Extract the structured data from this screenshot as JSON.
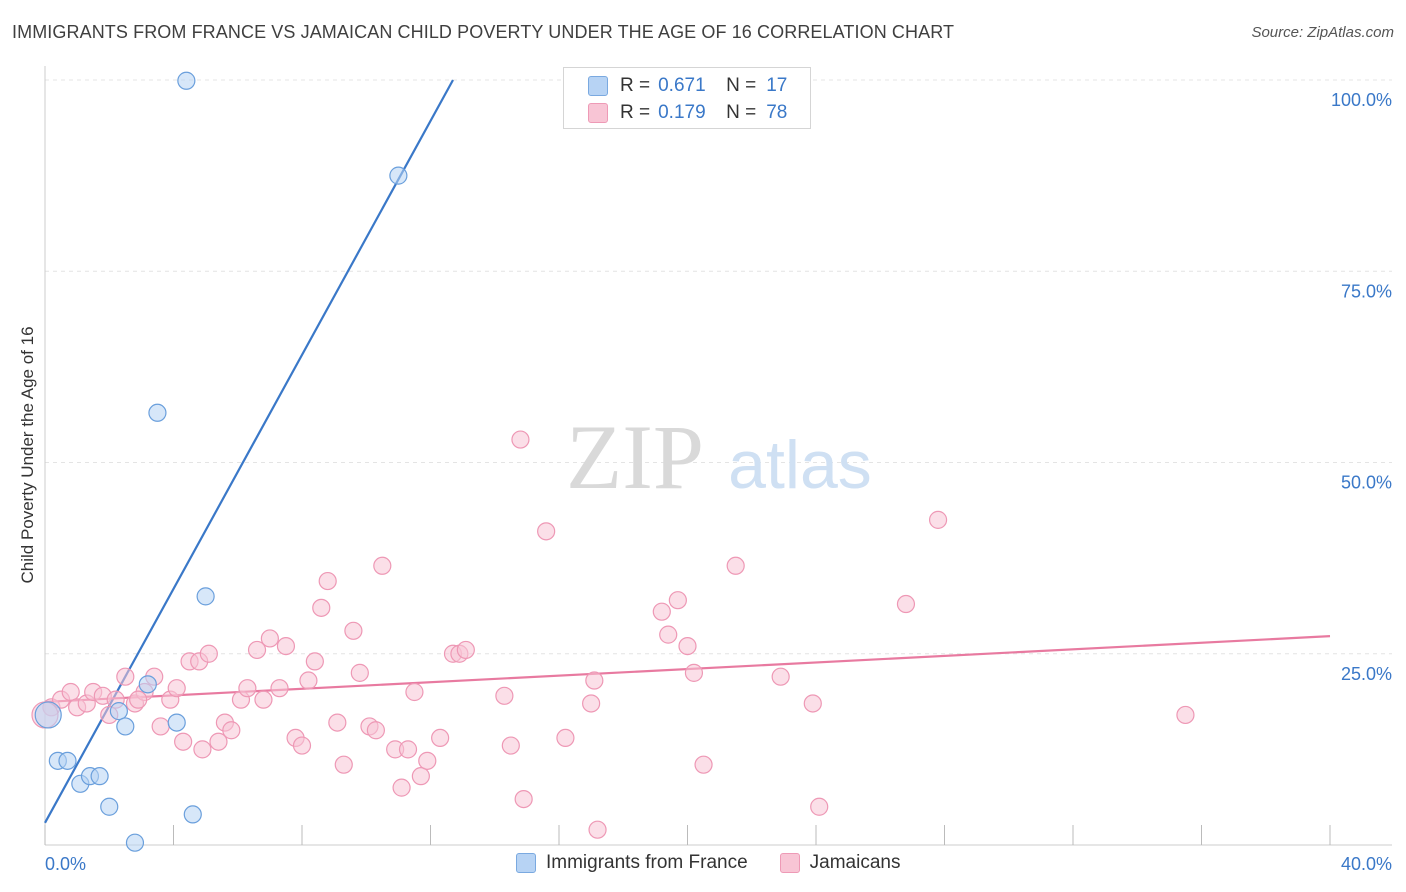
{
  "title": "IMMIGRANTS FROM FRANCE VS JAMAICAN CHILD POVERTY UNDER THE AGE OF 16 CORRELATION CHART",
  "source": "Source: ZipAtlas.com",
  "watermark": {
    "zip": "ZIP",
    "atlas": "atlas"
  },
  "colors": {
    "blue": "#3a78c8",
    "pink": "#e87aa0",
    "blue_fill": "#b7d3f4",
    "pink_fill": "#f8c5d5"
  },
  "stats": [
    {
      "r_label": "R =",
      "r_value": "0.671",
      "n_label": "N =",
      "n_value": "17",
      "series": "france"
    },
    {
      "r_label": "R =",
      "r_value": "0.179",
      "n_label": "N =",
      "n_value": "78",
      "series": "jamaicans"
    }
  ],
  "chart_data": {
    "type": "scatter",
    "title": "IMMIGRANTS FROM FRANCE VS JAMAICAN CHILD POVERTY UNDER THE AGE OF 16 CORRELATION CHART",
    "xlabel": "",
    "ylabel": "Child Poverty Under the Age of 16",
    "xlim": [
      0,
      40
    ],
    "ylim": [
      0,
      100
    ],
    "x_tick_labels": [
      "0.0%",
      "40.0%"
    ],
    "y_tick_labels": [
      "25.0%",
      "50.0%",
      "75.0%",
      "100.0%"
    ],
    "y_tick_values": [
      25,
      50,
      75,
      100
    ],
    "grid": true,
    "legend": [
      "Immigrants from France",
      "Jamaicans"
    ],
    "series": [
      {
        "name": "Immigrants from France",
        "color": "#3a78c8",
        "trend": {
          "x1": 0,
          "y1": 2.9,
          "x2": 12.7,
          "y2": 100
        },
        "points": [
          [
            0.1,
            17.0
          ],
          [
            0.4,
            11.0
          ],
          [
            0.7,
            11.0
          ],
          [
            1.1,
            8.0
          ],
          [
            1.4,
            9.0
          ],
          [
            1.7,
            9.0
          ],
          [
            2.0,
            5.0
          ],
          [
            2.3,
            17.5
          ],
          [
            2.5,
            15.5
          ],
          [
            2.8,
            0.3
          ],
          [
            3.2,
            21.0
          ],
          [
            3.5,
            56.5
          ],
          [
            4.1,
            16.0
          ],
          [
            4.4,
            99.9
          ],
          [
            4.6,
            4.0
          ],
          [
            5.0,
            32.5
          ],
          [
            11.0,
            87.5
          ]
        ]
      },
      {
        "name": "Jamaicans",
        "color": "#e87aa0",
        "trend": {
          "x1": 0,
          "y1": 18.7,
          "x2": 40,
          "y2": 27.3
        },
        "points": [
          [
            0.2,
            18.0
          ],
          [
            0.5,
            19.0
          ],
          [
            0.8,
            20.0
          ],
          [
            1.0,
            18.0
          ],
          [
            1.3,
            18.5
          ],
          [
            1.5,
            20.0
          ],
          [
            1.8,
            19.5
          ],
          [
            2.0,
            17.0
          ],
          [
            2.2,
            19.0
          ],
          [
            2.5,
            22.0
          ],
          [
            2.8,
            18.5
          ],
          [
            3.1,
            20.0
          ],
          [
            3.4,
            22.0
          ],
          [
            3.6,
            15.5
          ],
          [
            3.9,
            19.0
          ],
          [
            4.1,
            20.5
          ],
          [
            4.3,
            13.5
          ],
          [
            4.5,
            24.0
          ],
          [
            4.8,
            24.0
          ],
          [
            4.9,
            12.5
          ],
          [
            5.1,
            25.0
          ],
          [
            5.4,
            13.5
          ],
          [
            5.6,
            16.0
          ],
          [
            5.8,
            15.0
          ],
          [
            6.1,
            19.0
          ],
          [
            6.3,
            20.5
          ],
          [
            6.6,
            25.5
          ],
          [
            6.8,
            19.0
          ],
          [
            7.0,
            27.0
          ],
          [
            7.3,
            20.5
          ],
          [
            7.5,
            26.0
          ],
          [
            7.8,
            14.0
          ],
          [
            8.0,
            13.0
          ],
          [
            8.2,
            21.5
          ],
          [
            8.4,
            24.0
          ],
          [
            8.6,
            31.0
          ],
          [
            8.8,
            34.5
          ],
          [
            9.1,
            16.0
          ],
          [
            9.3,
            10.5
          ],
          [
            9.6,
            28.0
          ],
          [
            9.8,
            22.5
          ],
          [
            10.1,
            15.5
          ],
          [
            10.3,
            15.0
          ],
          [
            10.5,
            36.5
          ],
          [
            10.9,
            12.5
          ],
          [
            11.1,
            7.5
          ],
          [
            11.3,
            12.5
          ],
          [
            11.5,
            20.0
          ],
          [
            11.7,
            9.0
          ],
          [
            11.9,
            11.0
          ],
          [
            12.3,
            14.0
          ],
          [
            12.7,
            25.0
          ],
          [
            12.9,
            25.0
          ],
          [
            13.1,
            25.5
          ],
          [
            14.3,
            19.5
          ],
          [
            14.5,
            13.0
          ],
          [
            14.8,
            53.0
          ],
          [
            14.9,
            6.0
          ],
          [
            15.6,
            41.0
          ],
          [
            16.2,
            14.0
          ],
          [
            17.2,
            2.0
          ],
          [
            17.0,
            18.5
          ],
          [
            17.1,
            21.5
          ],
          [
            19.2,
            30.5
          ],
          [
            19.4,
            27.5
          ],
          [
            19.7,
            32.0
          ],
          [
            20.0,
            26.0
          ],
          [
            20.2,
            22.5
          ],
          [
            20.5,
            10.5
          ],
          [
            21.5,
            36.5
          ],
          [
            22.9,
            22.0
          ],
          [
            23.9,
            18.5
          ],
          [
            24.1,
            5.0
          ],
          [
            26.8,
            31.5
          ],
          [
            27.8,
            42.5
          ],
          [
            35.5,
            17.0
          ],
          [
            0.0,
            17.0
          ],
          [
            2.9,
            19.0
          ]
        ]
      }
    ]
  }
}
